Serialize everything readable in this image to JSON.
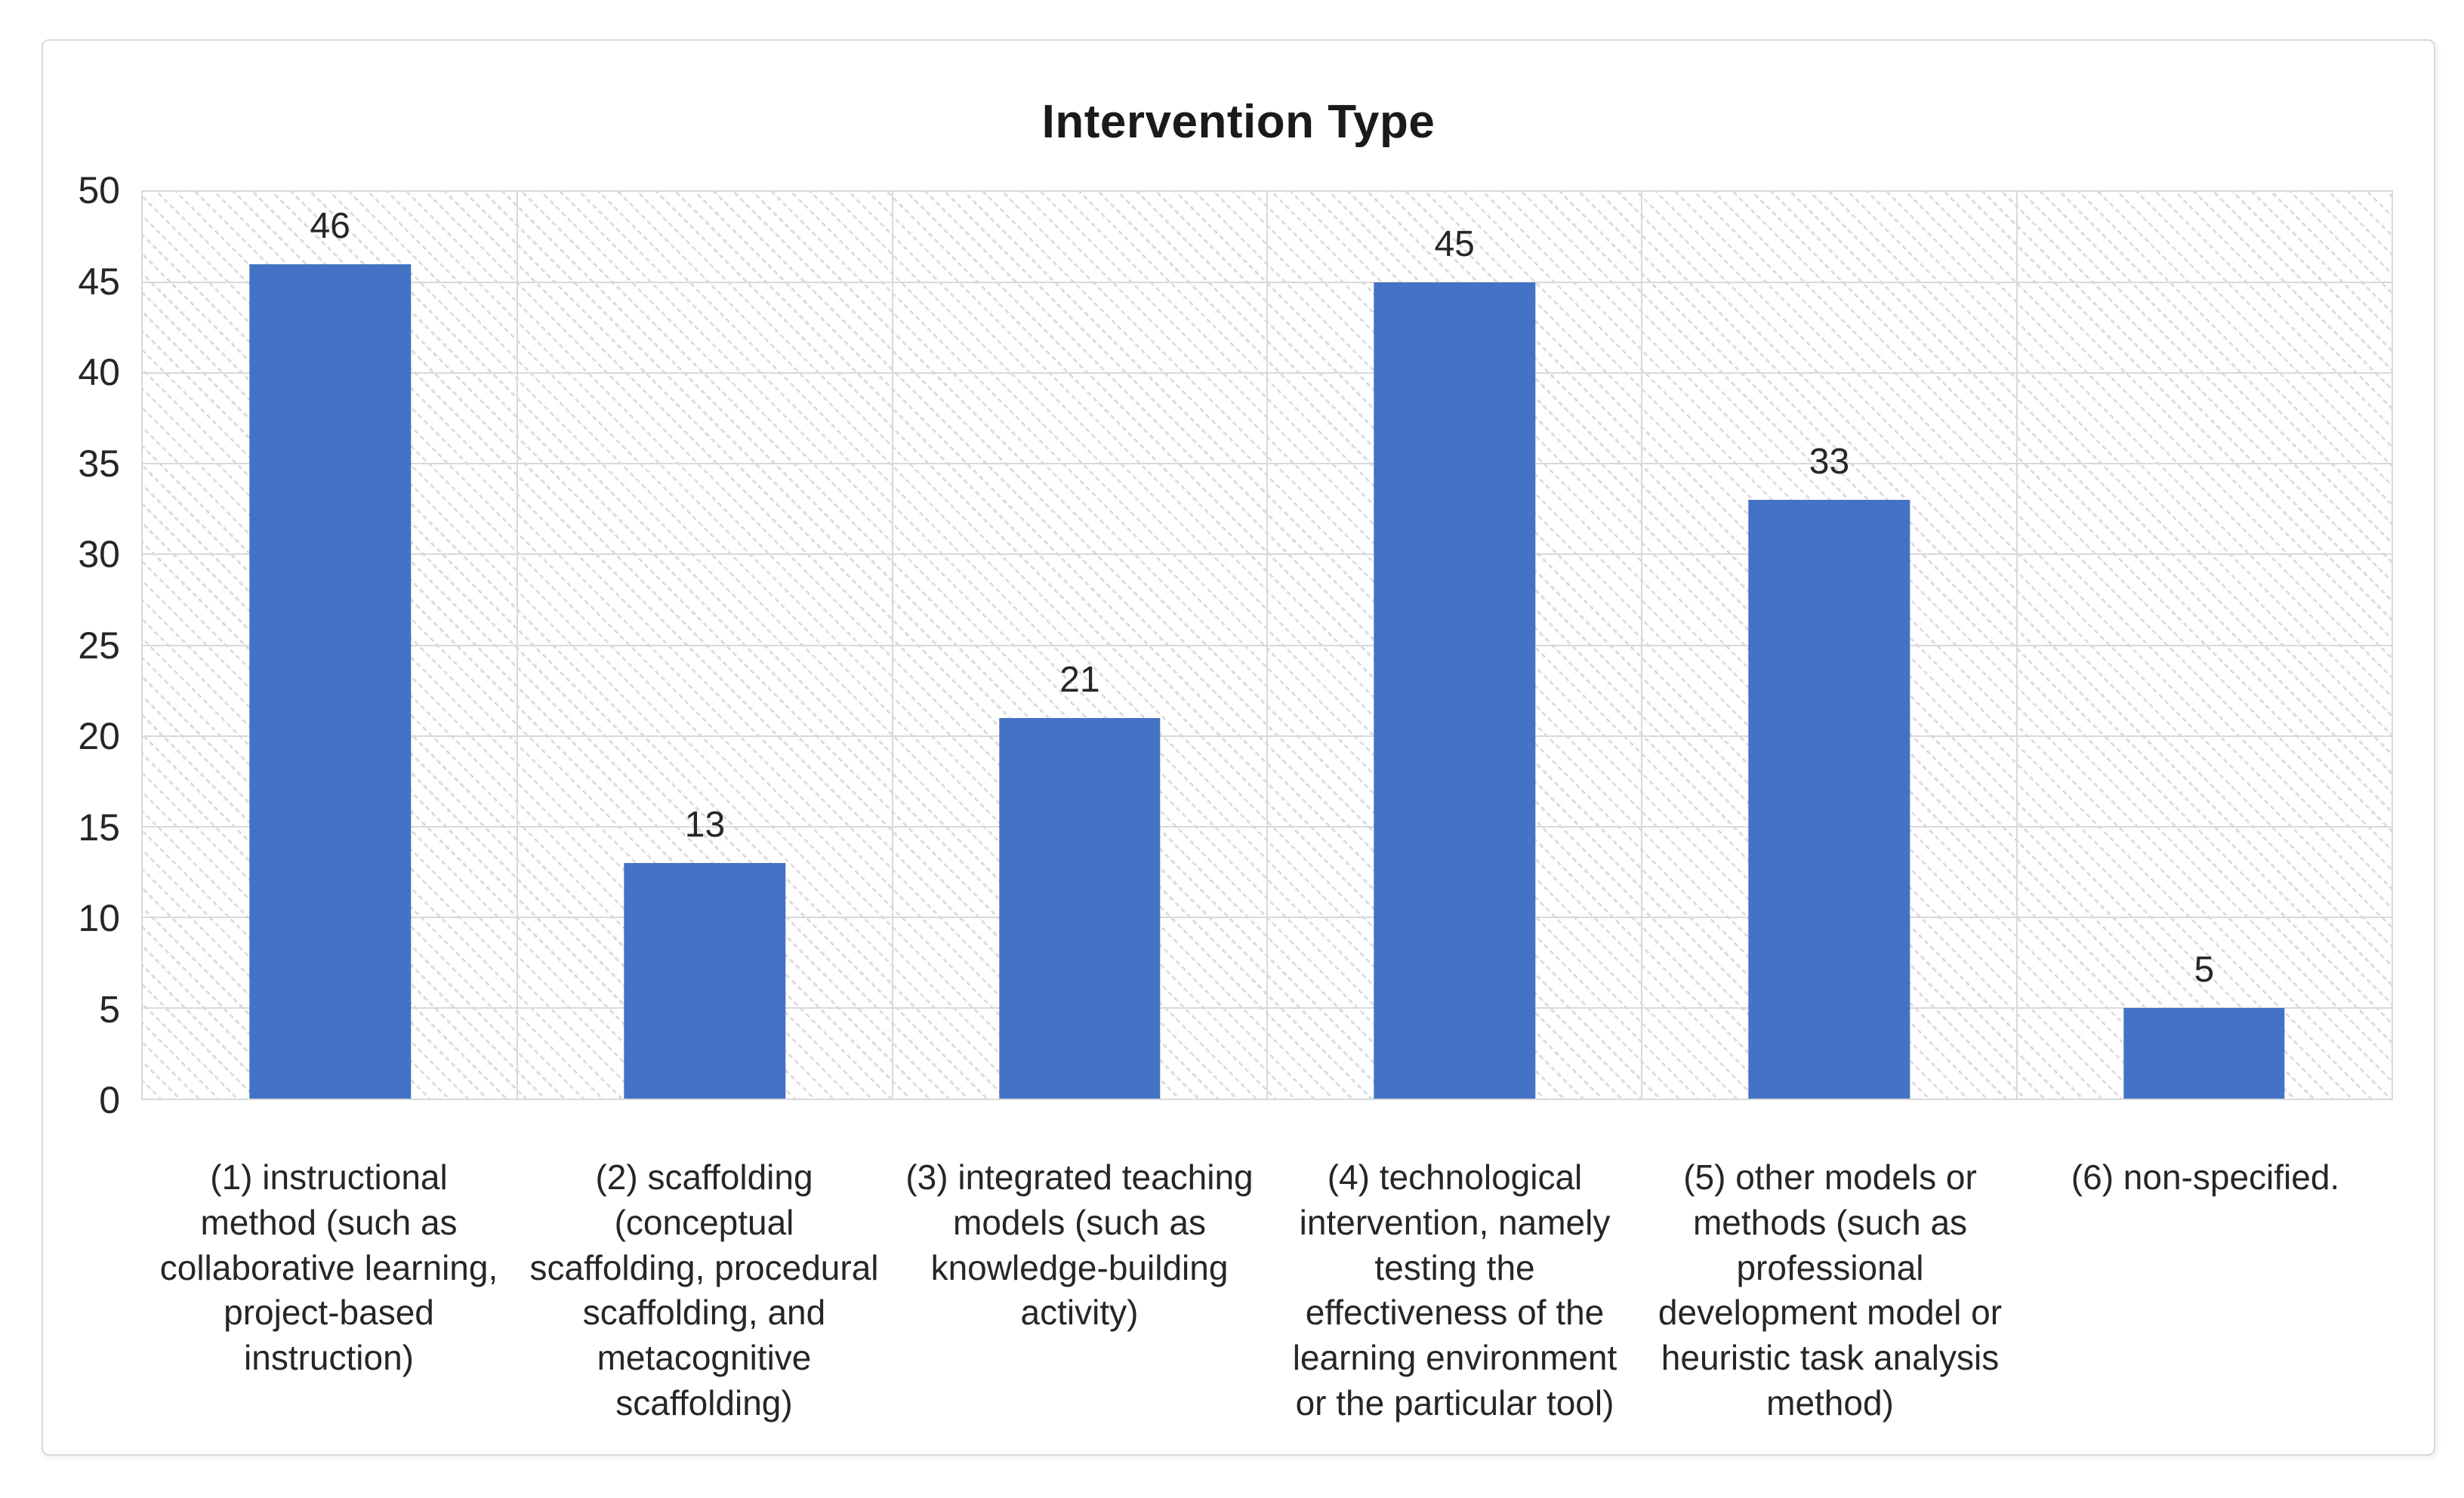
{
  "chart_data": {
    "type": "bar",
    "title": "Intervention Type",
    "categories": [
      "(1) instructional method (such as collaborative learning, project-based instruction)",
      "(2) scaffolding (conceptual scaffolding, procedural scaffolding, and metacognitive scaffolding)",
      "(3) integrated teaching models (such as knowledge-building activity)",
      "(4) technological intervention, namely testing the effectiveness of the learning environment or the particular tool)",
      "(5) other models or methods (such as professional development model or heuristic task analysis method)",
      "(6) non-specified."
    ],
    "values": [
      46,
      13,
      21,
      45,
      33,
      5
    ],
    "data_labels_shown": true,
    "xlabel": "",
    "ylabel": "",
    "ylim": [
      0,
      50
    ],
    "ytick_step": 5,
    "yticks": [
      0,
      5,
      10,
      15,
      20,
      25,
      30,
      35,
      40,
      45,
      50
    ],
    "legend": "none",
    "grid": {
      "horizontal_major": true,
      "vertical_category_separators": true
    },
    "plot_background": "light diagonal dotted hatch pattern",
    "colors": {
      "bar": "#4472C4",
      "gridline": "#D9D9D9",
      "hatch_line": "#DCDCDC",
      "plot_border": "#D9D9D9",
      "frame_border": "#D9D9D9",
      "title_text": "#1A1A1A",
      "axis_text": "#262626",
      "background": "#FFFFFF"
    }
  }
}
